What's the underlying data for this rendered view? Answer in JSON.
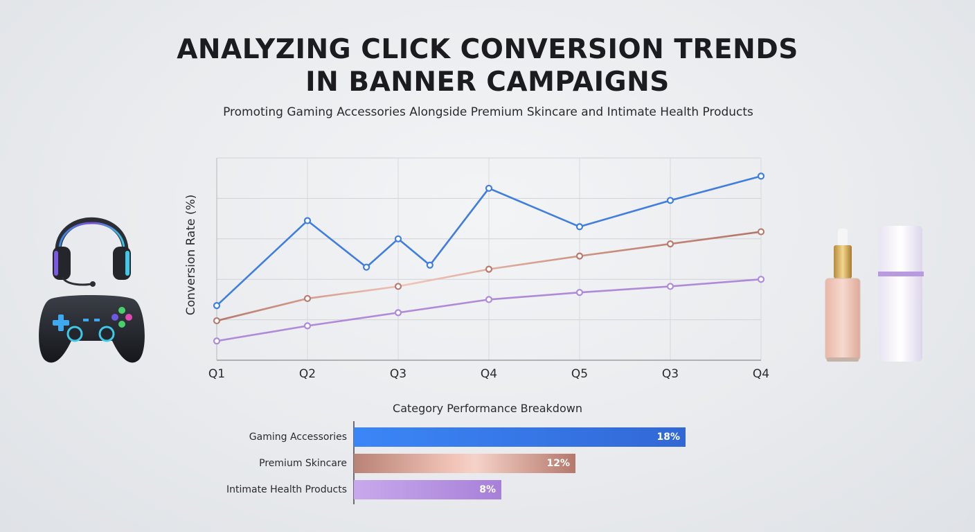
{
  "header": {
    "title_line1": "ANALYZING CLICK CONVERSION TRENDS",
    "title_line2": "IN BANNER CAMPAIGNS",
    "subtitle": "Promoting Gaming Accessories Alongside Premium Skincare and Intimate Health Products"
  },
  "chart_data": [
    {
      "type": "line",
      "title": "",
      "xlabel": "",
      "ylabel": "Conversion Rate (%)",
      "grid": true,
      "ylim": [
        0,
        100
      ],
      "x_ticks": [
        {
          "label": "Q1",
          "pos": 0
        },
        {
          "label": "Q2",
          "pos": 1
        },
        {
          "label": "Q3",
          "pos": 2
        },
        {
          "label": "Q4",
          "pos": 3
        },
        {
          "label": "Q5",
          "pos": 4
        },
        {
          "label": "Q3",
          "pos": 5
        },
        {
          "label": "Q4",
          "pos": 6
        }
      ],
      "series": [
        {
          "color": "#3f7ee0",
          "points": [
            [
              0,
              27
            ],
            [
              1,
              69
            ],
            [
              1.65,
              46
            ],
            [
              2,
              60
            ],
            [
              2.35,
              47
            ],
            [
              3,
              85
            ],
            [
              4,
              66
            ],
            [
              5,
              79
            ],
            [
              6,
              91
            ]
          ]
        },
        {
          "color": "#b97a6e",
          "points": [
            [
              0,
              19.5
            ],
            [
              1,
              30.5
            ],
            [
              2,
              36.5
            ],
            [
              3,
              45
            ],
            [
              4,
              51.5
            ],
            [
              5,
              57.5
            ],
            [
              6,
              63.5
            ]
          ]
        },
        {
          "color": "#b08ad8",
          "points": [
            [
              0,
              9.5
            ],
            [
              1,
              17
            ],
            [
              2,
              23.5
            ],
            [
              3,
              30
            ],
            [
              4,
              33.5
            ],
            [
              5,
              36.5
            ],
            [
              6,
              40
            ]
          ]
        }
      ]
    },
    {
      "type": "bar",
      "orientation": "horizontal",
      "title": "Category Performance Breakdown",
      "categories": [
        "Gaming Accessories",
        "Premium Skincare",
        "Intimate Health Products"
      ],
      "values": [
        18,
        12,
        8
      ],
      "value_labels": [
        "18%",
        "12%",
        "8%"
      ],
      "xlim": [
        0,
        30
      ],
      "colors": [
        "#3a7ff0",
        "#c49084",
        "#b99be3"
      ]
    }
  ],
  "illustrations": {
    "left": "gaming-headset-and-controller",
    "right": "skincare-bottles"
  }
}
